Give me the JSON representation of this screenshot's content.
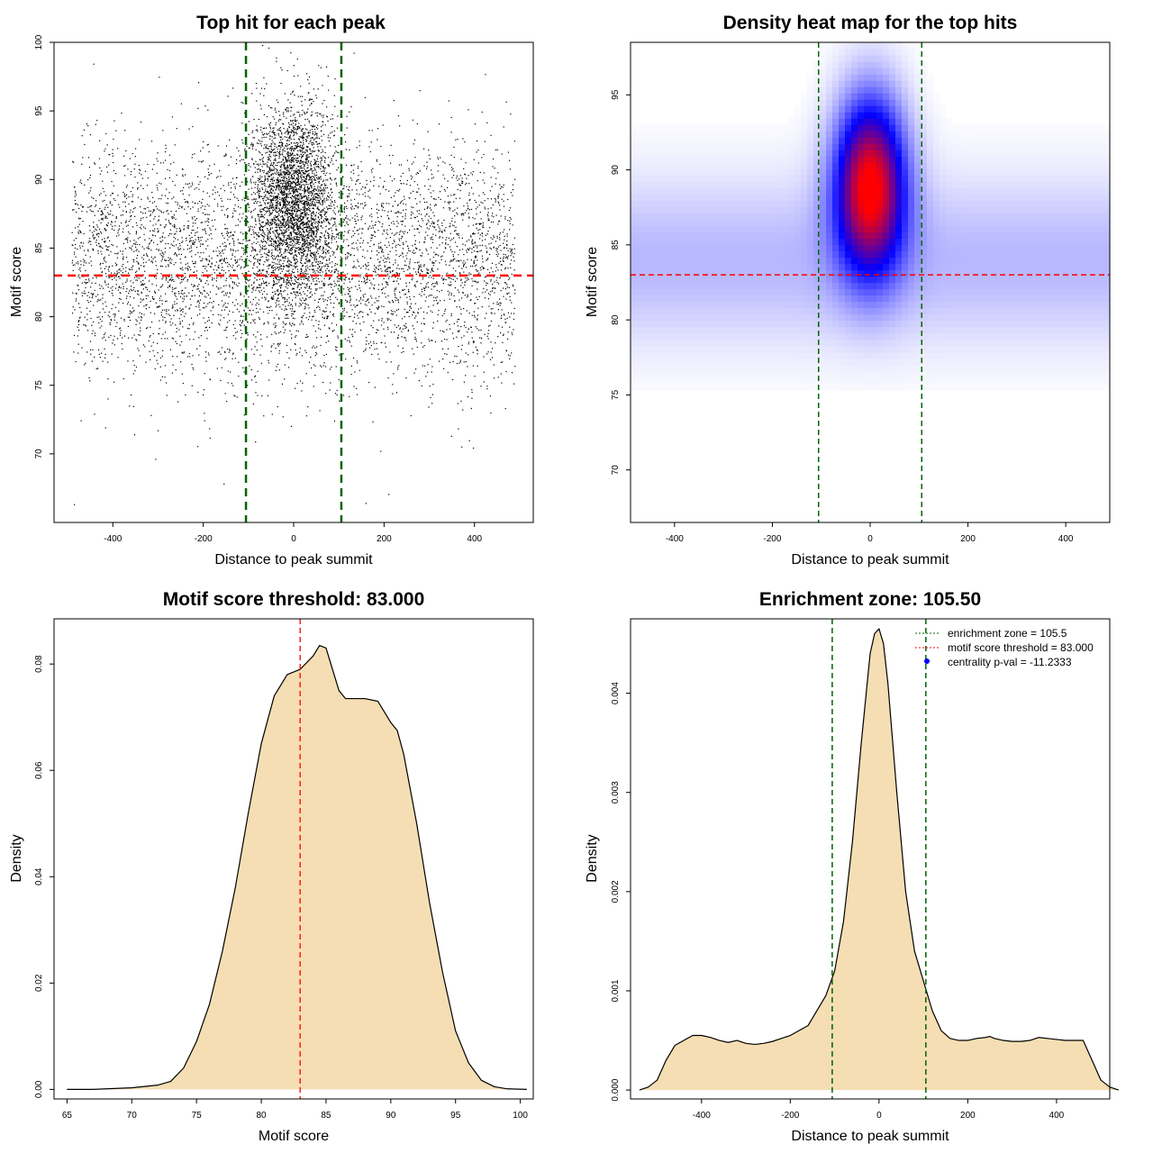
{
  "panels": {
    "scatter": {
      "title": "Top hit for each peak",
      "xlabel": "Distance to peak summit",
      "ylabel": "Motif score"
    },
    "heatmap": {
      "title": "Density heat map for the top hits",
      "xlabel": "Distance to peak summit",
      "ylabel": "Motif score"
    },
    "score_density": {
      "title": "Motif score threshold: 83.000",
      "xlabel": "Motif score",
      "ylabel": "Density"
    },
    "distance_density": {
      "title": "Enrichment zone: 105.50",
      "xlabel": "Distance to peak summit",
      "ylabel": "Density",
      "legend": [
        {
          "text": "enrichment zone = 105.5",
          "color": "#006400",
          "style": "dotted-line"
        },
        {
          "text": "motif score threshold = 83.000",
          "color": "#ff0000",
          "style": "dotted-line"
        },
        {
          "text": "centrality p-val = -11.2333",
          "color": "#0000ff",
          "style": "dot"
        }
      ]
    }
  },
  "chart_data": [
    {
      "id": "scatter",
      "type": "scatter",
      "title": "Top hit for each peak",
      "xlabel": "Distance to peak summit",
      "ylabel": "Motif score",
      "xlim": [
        -530,
        530
      ],
      "ylim": [
        65,
        100
      ],
      "xticks": [
        -400,
        -200,
        0,
        200,
        400
      ],
      "yticks": [
        70,
        75,
        80,
        85,
        90,
        95,
        100
      ],
      "vlines": [
        -105.5,
        105.5
      ],
      "vline_color": "#006400",
      "hline": 83.0,
      "hline_color": "#ff0000",
      "point_color": "#000000",
      "distribution": {
        "x_range": [
          -490,
          490
        ],
        "background": {
          "count": 5000,
          "y_mean": 84,
          "y_sd": 4.2
        },
        "central": {
          "count": 3200,
          "x_sd": 45,
          "y_mean": 88.5,
          "y_sd": 3.5
        },
        "outliers": [
          [
            -485,
            66.3
          ],
          [
            -315,
            72.8
          ],
          [
            -5,
            72
          ],
          [
            -200,
            74.3
          ]
        ]
      }
    },
    {
      "id": "heatmap",
      "type": "heatmap",
      "title": "Density heat map for the top hits",
      "xlabel": "Distance to peak summit",
      "ylabel": "Motif score",
      "xlim": [
        -490,
        490
      ],
      "ylim": [
        66.5,
        98.5
      ],
      "xticks": [
        -400,
        -200,
        0,
        200,
        400
      ],
      "yticks": [
        70,
        75,
        80,
        85,
        90,
        95
      ],
      "vlines": [
        -105.5,
        105.5
      ],
      "vline_color": "#006400",
      "hline": 83.0,
      "hline_color": "#ff0000",
      "colors": [
        "#ffffff",
        "#0000ff",
        "#ff0000"
      ],
      "background_band": {
        "y_range": [
          75,
          95
        ],
        "peak_y": 84
      },
      "hotspot": {
        "x": 0,
        "y": 89,
        "x_sd": 50,
        "y_sd": 4
      }
    },
    {
      "id": "score_density",
      "type": "area",
      "title": "Motif score threshold: 83.000",
      "xlabel": "Motif score",
      "ylabel": "Density",
      "xlim": [
        64,
        101
      ],
      "ylim": [
        -0.0018,
        0.0885
      ],
      "xticks": [
        65,
        70,
        75,
        80,
        85,
        90,
        95,
        100
      ],
      "yticks": [
        0.0,
        0.02,
        0.04,
        0.06,
        0.08
      ],
      "yticklabels": [
        "0.00",
        "0.02",
        "0.04",
        "0.06",
        "0.08"
      ],
      "fill_color": "#f5deb3",
      "vline": 83.0,
      "vline_color": "#ff0000",
      "x": [
        65,
        67,
        70,
        72,
        73,
        74,
        75,
        76,
        77,
        78,
        79,
        80,
        81,
        82,
        83,
        84,
        84.5,
        85,
        85.5,
        86,
        86.5,
        87,
        88,
        89,
        90,
        90.5,
        91,
        92,
        93,
        94,
        95,
        96,
        97,
        98,
        99,
        100.5
      ],
      "y": [
        0,
        0,
        0.0003,
        0.0008,
        0.0015,
        0.004,
        0.009,
        0.016,
        0.026,
        0.038,
        0.052,
        0.065,
        0.074,
        0.078,
        0.079,
        0.0815,
        0.0835,
        0.083,
        0.079,
        0.075,
        0.0735,
        0.0735,
        0.0735,
        0.073,
        0.069,
        0.0675,
        0.063,
        0.05,
        0.035,
        0.022,
        0.011,
        0.005,
        0.0017,
        0.0005,
        0.0001,
        0
      ]
    },
    {
      "id": "distance_density",
      "type": "area",
      "title": "Enrichment zone: 105.50",
      "xlabel": "Distance to peak summit",
      "ylabel": "Density",
      "xlim": [
        -560,
        520
      ],
      "ylim": [
        -9e-05,
        0.00475
      ],
      "xticks": [
        -400,
        -200,
        0,
        200,
        400
      ],
      "yticks": [
        0.0,
        0.001,
        0.002,
        0.003,
        0.004
      ],
      "yticklabels": [
        "0.000",
        "0.001",
        "0.002",
        "0.003",
        "0.004"
      ],
      "fill_color": "#f5deb3",
      "vlines": [
        -105.5,
        105.5
      ],
      "vline_color": "#006400",
      "x": [
        -540,
        -520,
        -500,
        -480,
        -460,
        -440,
        -420,
        -400,
        -380,
        -360,
        -340,
        -320,
        -300,
        -280,
        -260,
        -240,
        -220,
        -200,
        -180,
        -160,
        -140,
        -120,
        -100,
        -80,
        -60,
        -40,
        -20,
        -10,
        0,
        10,
        20,
        40,
        60,
        80,
        100,
        120,
        140,
        160,
        180,
        200,
        220,
        240,
        250,
        260,
        280,
        300,
        320,
        340,
        360,
        380,
        400,
        420,
        440,
        460,
        480,
        500,
        520,
        540
      ],
      "y": [
        0,
        3e-05,
        0.0001,
        0.0003,
        0.00045,
        0.0005,
        0.00055,
        0.00055,
        0.00053,
        0.0005,
        0.00048,
        0.0005,
        0.00047,
        0.00046,
        0.00047,
        0.00049,
        0.00052,
        0.00055,
        0.0006,
        0.00065,
        0.0008,
        0.00095,
        0.0012,
        0.0017,
        0.0025,
        0.0035,
        0.0044,
        0.0046,
        0.00465,
        0.0045,
        0.0041,
        0.003,
        0.002,
        0.0014,
        0.0011,
        0.0008,
        0.0006,
        0.00052,
        0.0005,
        0.0005,
        0.00052,
        0.00053,
        0.00054,
        0.00052,
        0.0005,
        0.00049,
        0.00049,
        0.0005,
        0.00053,
        0.00052,
        0.00051,
        0.0005,
        0.0005,
        0.0005,
        0.0003,
        0.0001,
        3e-05,
        0
      ]
    }
  ]
}
